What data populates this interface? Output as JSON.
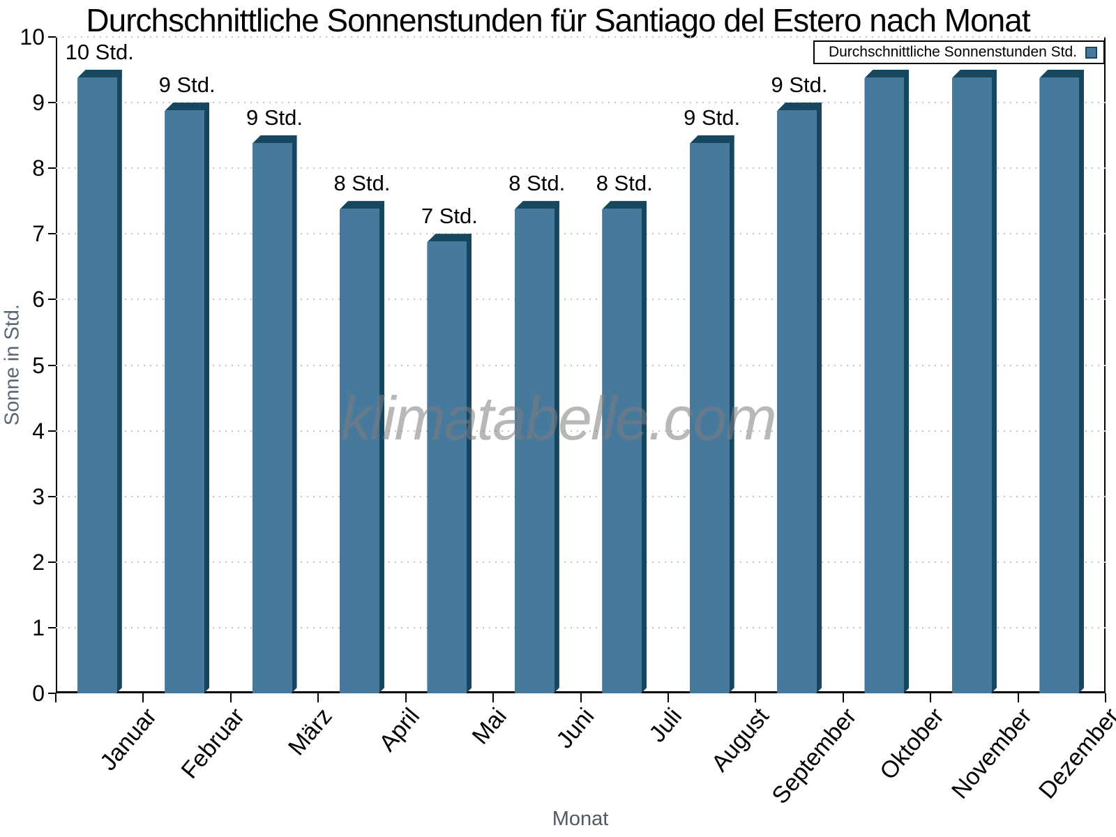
{
  "chart_data": {
    "type": "bar",
    "title": "Durchschnittliche Sonnenstunden für Santiago del Estero nach Monat",
    "xlabel": "Monat",
    "ylabel": "Sonne in Std.",
    "ylim": [
      0,
      10
    ],
    "yticks": [
      0,
      1,
      2,
      3,
      4,
      5,
      6,
      7,
      8,
      9,
      10
    ],
    "grid": "horizontal-dotted",
    "categories": [
      "Januar",
      "Februar",
      "März",
      "April",
      "Mai",
      "Juni",
      "Juli",
      "August",
      "September",
      "Oktober",
      "November",
      "Dezember"
    ],
    "series": [
      {
        "name": "Durchschnittliche Sonnenstunden Std.",
        "values": [
          9.5,
          9.0,
          8.5,
          7.5,
          7.0,
          7.5,
          7.5,
          8.5,
          9.0,
          9.5,
          9.5,
          9.5
        ],
        "bar_labels": [
          "10 Std.",
          "9 Std.",
          "9 Std.",
          "8 Std.",
          "7 Std.",
          "8 Std.",
          "8 Std.",
          "9 Std.",
          "9 Std.",
          "",
          "",
          ""
        ]
      }
    ],
    "legend": {
      "position": "top-right",
      "label": "Durchschnittliche Sonnenstunden Std."
    },
    "watermark": "klimatabelle.com",
    "colors": {
      "bar_face": "#47799D",
      "bar_edge_dark": "#17465F",
      "gridline": "#c3c3c3",
      "axis": "#000000",
      "axis_label_gray": "#4f5a64"
    }
  }
}
